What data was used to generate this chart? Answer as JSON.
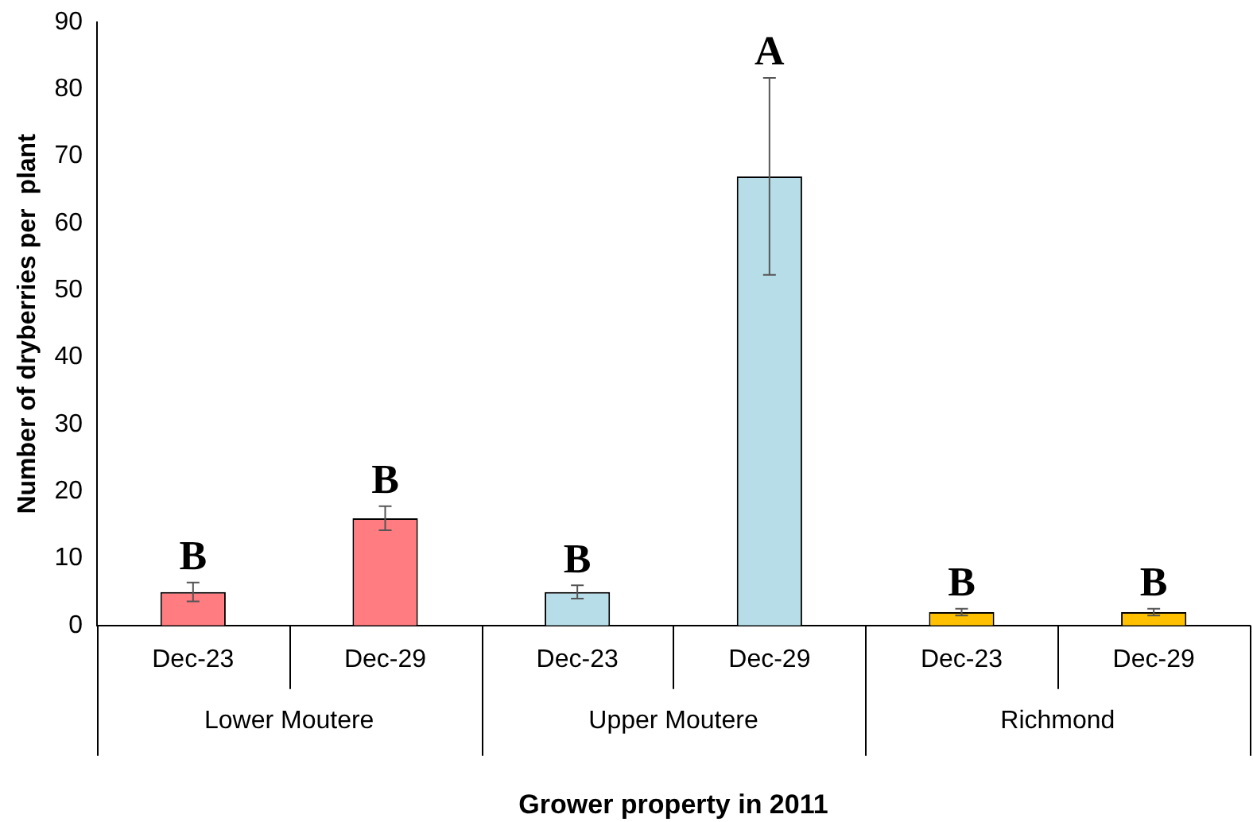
{
  "chart_data": {
    "type": "bar",
    "xlabel": "Grower property in 2011",
    "ylabel": "Number of dryberries per  plant",
    "categories": [
      "Dec-23",
      "Dec-29",
      "Dec-23",
      "Dec-29",
      "Dec-23",
      "Dec-29"
    ],
    "values": [
      5,
      16,
      5,
      67,
      2,
      2
    ],
    "colors": [
      "#ff7c80",
      "#ff7c80",
      "#b7dee8",
      "#b7dee8",
      "#ffc000",
      "#ffc000"
    ],
    "errors": [
      1.4,
      1.8,
      1,
      14.7,
      0.5,
      0.5
    ],
    "ylim": [
      0,
      90
    ],
    "yticks": [
      0,
      10,
      20,
      30,
      40,
      50,
      60,
      70,
      80,
      90
    ],
    "grid": false,
    "legend": false,
    "annotations": [
      "B",
      "B",
      "B",
      "A",
      "B",
      "B",
      "Lower Moutere",
      "Upper Moutere",
      "Richmond"
    ]
  }
}
